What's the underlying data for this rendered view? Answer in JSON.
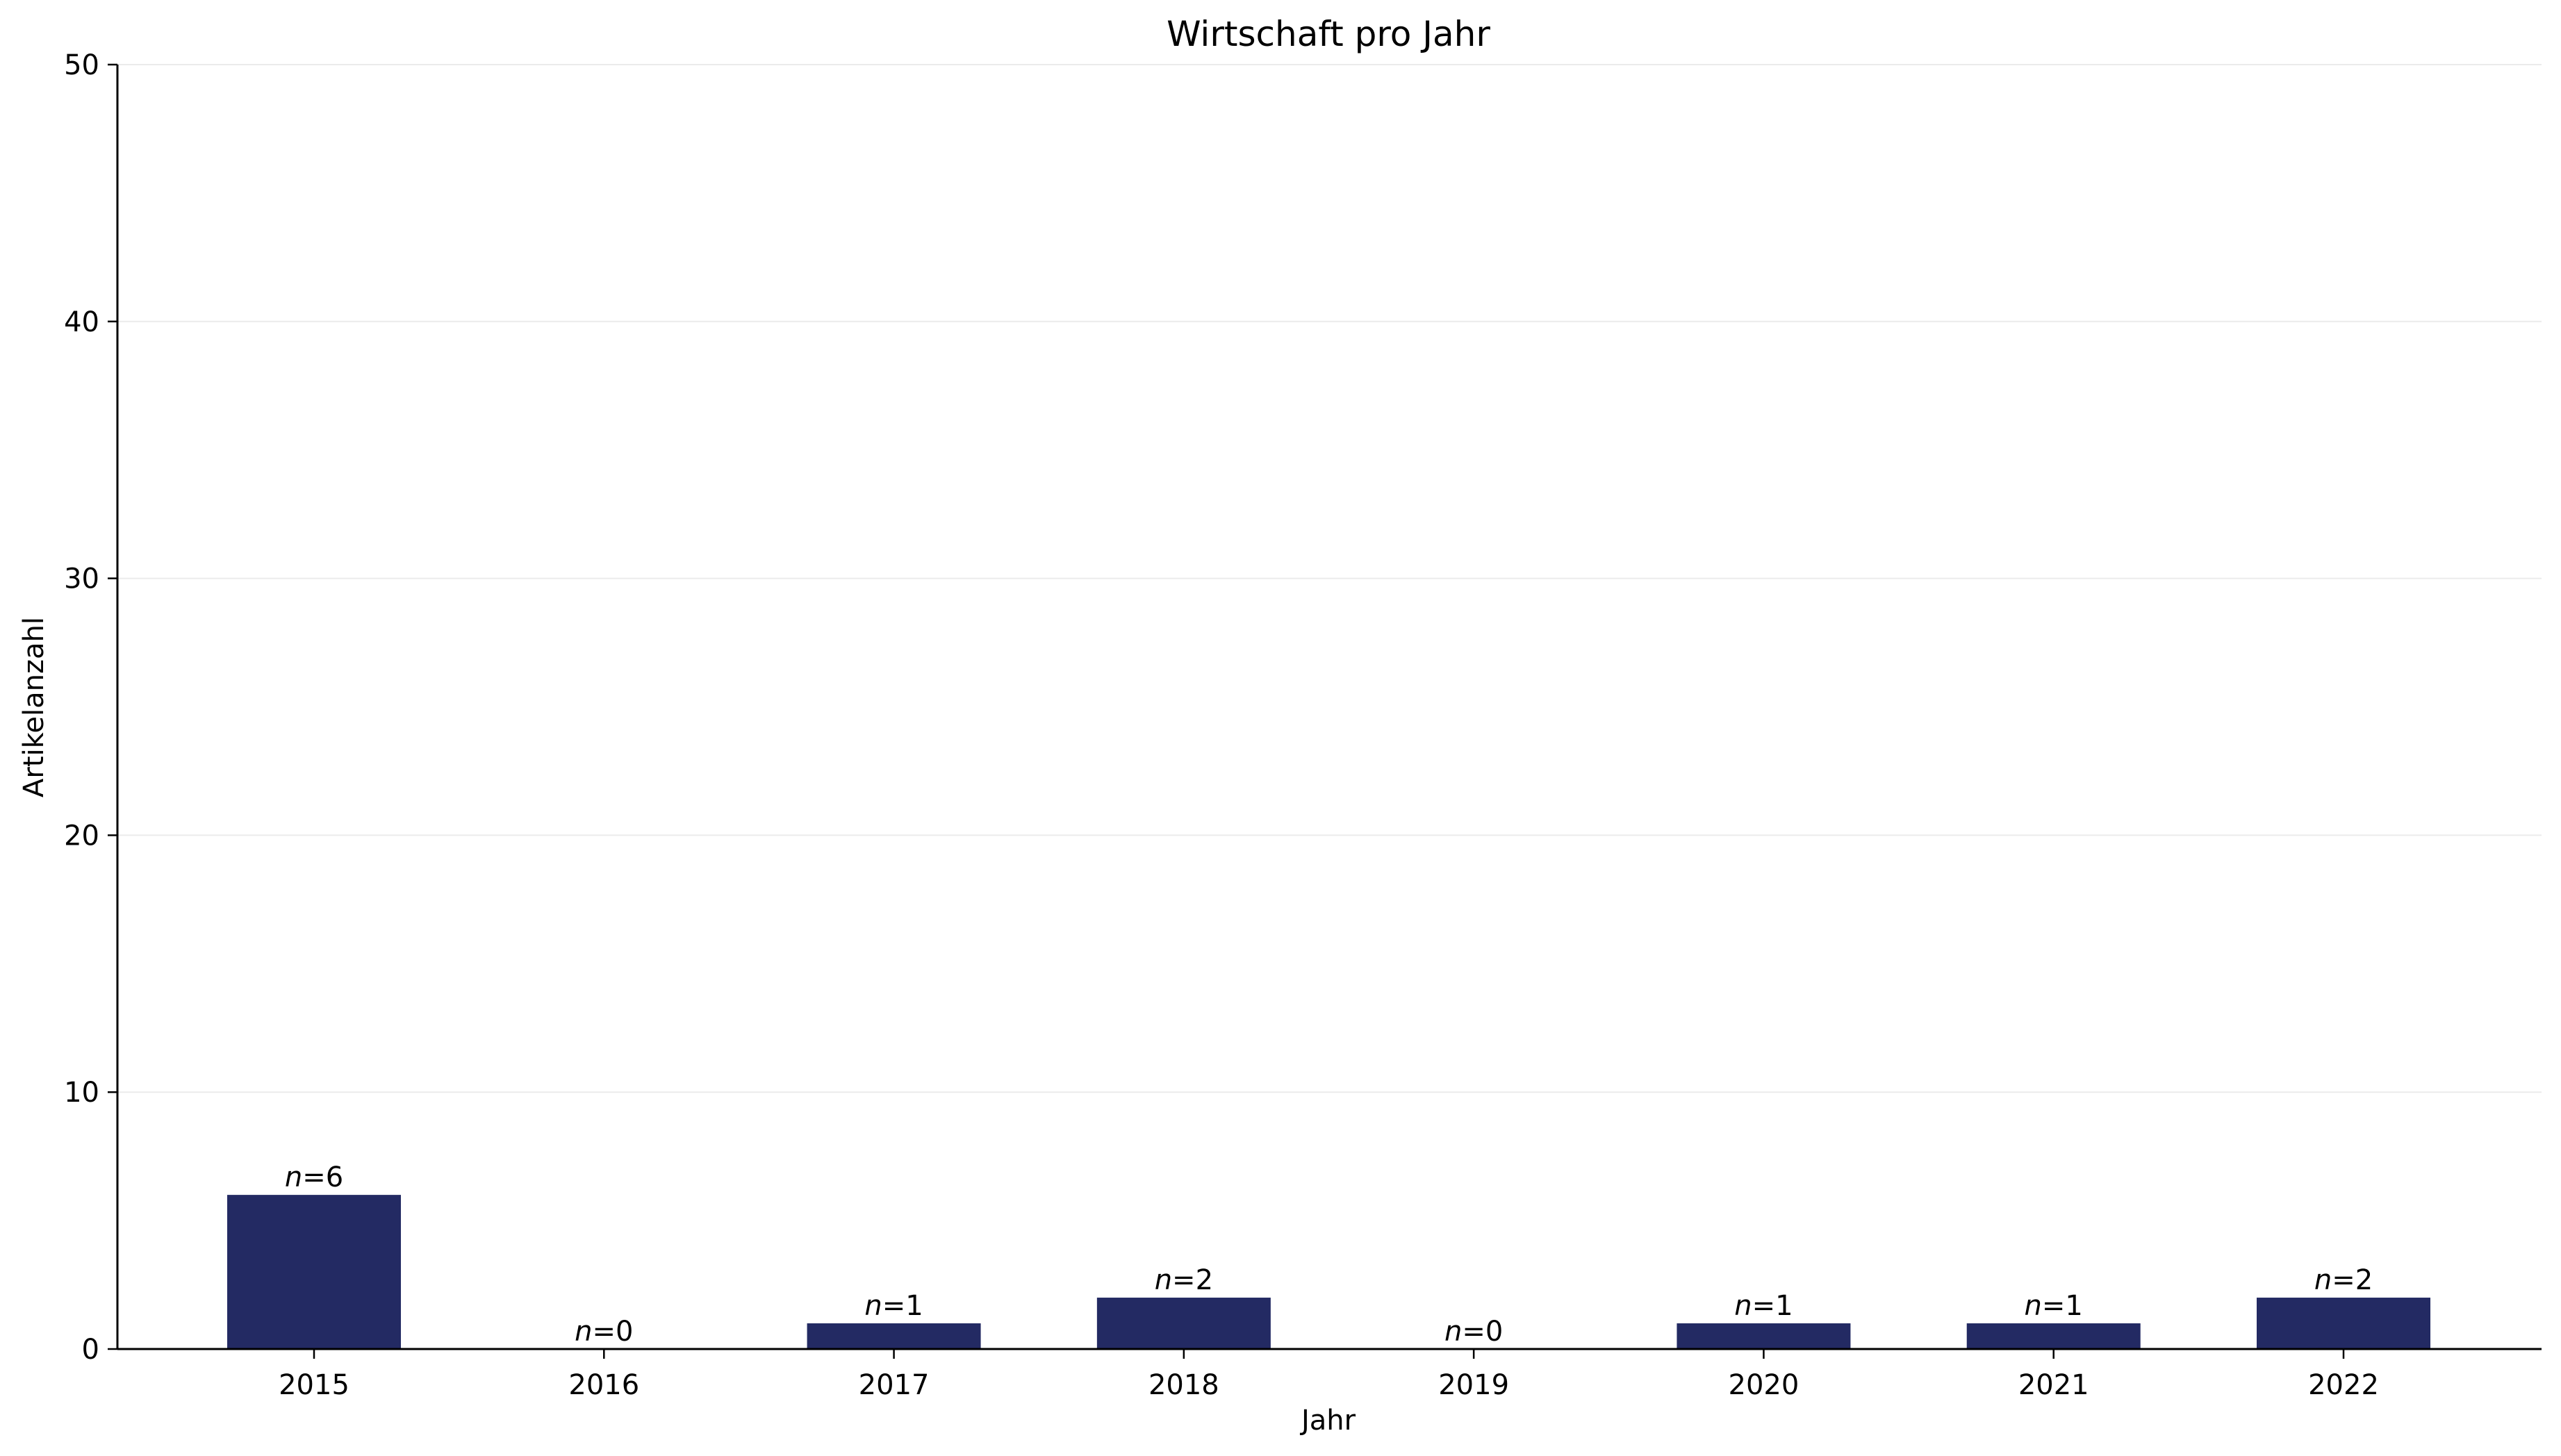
{
  "chart_data": {
    "type": "bar",
    "title": "Wirtschaft pro Jahr",
    "xlabel": "Jahr",
    "ylabel": "Artikelanzahl",
    "categories": [
      "2015",
      "2016",
      "2017",
      "2018",
      "2019",
      "2020",
      "2021",
      "2022"
    ],
    "values": [
      6,
      0,
      1,
      2,
      0,
      1,
      1,
      2
    ],
    "data_labels": [
      "n=6",
      "n=0",
      "n=1",
      "n=2",
      "n=0",
      "n=1",
      "n=1",
      "n=2"
    ],
    "ylim": [
      0,
      50
    ],
    "yticks": [
      0,
      10,
      20,
      30,
      40,
      50
    ],
    "grid": "horizontal",
    "legend": "none",
    "bar_color": "#232a63",
    "grid_color": "#ebebeb"
  }
}
